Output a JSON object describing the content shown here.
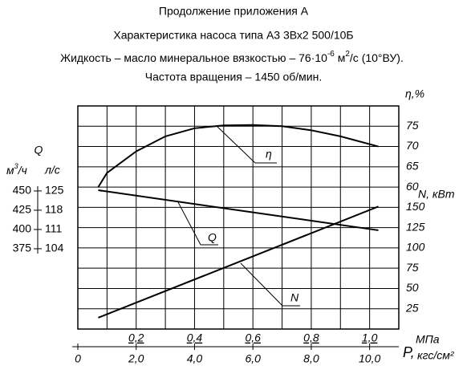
{
  "chart_data": {
    "type": "line",
    "title_lines": [
      "Продолжение приложения А",
      "Характеристика насоса типа А3 3Вх2 500/10Б"
    ],
    "subtitle_parts": [
      "Жидкость – масло минеральное вязкостью – 76·10",
      "-6",
      " м",
      "2",
      "/с (10°ВУ)."
    ],
    "subtitle2": "Частота вращения – 1450 об/мин.",
    "y2_label": "η,%",
    "y_label": "N, кВт",
    "y3_label": "Q",
    "y3_unit_parts": [
      "м",
      "3",
      "/ч"
    ],
    "y4_unit": "л/с",
    "x_label": "МПа",
    "x2_label_parts": [
      "P,",
      "кгс/см²"
    ],
    "xlim": [
      0,
      1.1
    ],
    "xticks": [
      {
        "value": 0.2,
        "label": "0,2"
      },
      {
        "value": 0.4,
        "label": "0,4"
      },
      {
        "value": 0.6,
        "label": "0,6"
      },
      {
        "value": 0.8,
        "label": "0,8"
      },
      {
        "value": 1.0,
        "label": "1,0"
      }
    ],
    "xgrid": [
      0.1,
      0.2,
      0.3,
      0.4,
      0.5,
      0.6,
      0.7,
      0.8,
      0.9,
      1.0
    ],
    "x2lim": [
      0,
      11
    ],
    "x2ticks": [
      0,
      {
        "value": 2,
        "label": "2,0"
      },
      {
        "value": 4,
        "label": "4,0"
      },
      {
        "value": 6,
        "label": "6,0"
      },
      {
        "value": 8,
        "label": "8,0"
      },
      {
        "value": 10,
        "label": "10,0"
      }
    ],
    "ylim": [
      0,
      275
    ],
    "yticks": [
      25,
      50,
      75,
      100,
      125,
      150
    ],
    "ygrid": [
      25,
      50,
      75,
      100,
      125,
      150,
      175,
      200,
      225,
      250
    ],
    "y2lim": [
      25,
      80
    ],
    "y2ticks": [
      60,
      65,
      70,
      75
    ],
    "y3lim": [
      270.8,
      560.4
    ],
    "y3ticks": [
      375,
      400,
      425,
      450
    ],
    "y4lim": [
      74.8,
      155.9
    ],
    "y4ticks": [
      104,
      111,
      118,
      125
    ],
    "series": [
      {
        "name": "η",
        "axis": "y2",
        "color": "#000000",
        "x": [
          0.07,
          0.1,
          0.2,
          0.3,
          0.4,
          0.5,
          0.6,
          0.7,
          0.8,
          0.9,
          1.03
        ],
        "values": [
          60,
          63.5,
          68.8,
          72.5,
          74.5,
          75.2,
          75.3,
          75,
          74,
          72.5,
          70
        ]
      },
      {
        "name": "Q",
        "axis": "y3",
        "color": "#000000",
        "x": [
          0.07,
          1.03
        ],
        "values": [
          451,
          399
        ]
      },
      {
        "name": "N",
        "axis": "y",
        "color": "#000000",
        "x": [
          0.07,
          1.03
        ],
        "values": [
          14,
          151
        ]
      }
    ]
  }
}
